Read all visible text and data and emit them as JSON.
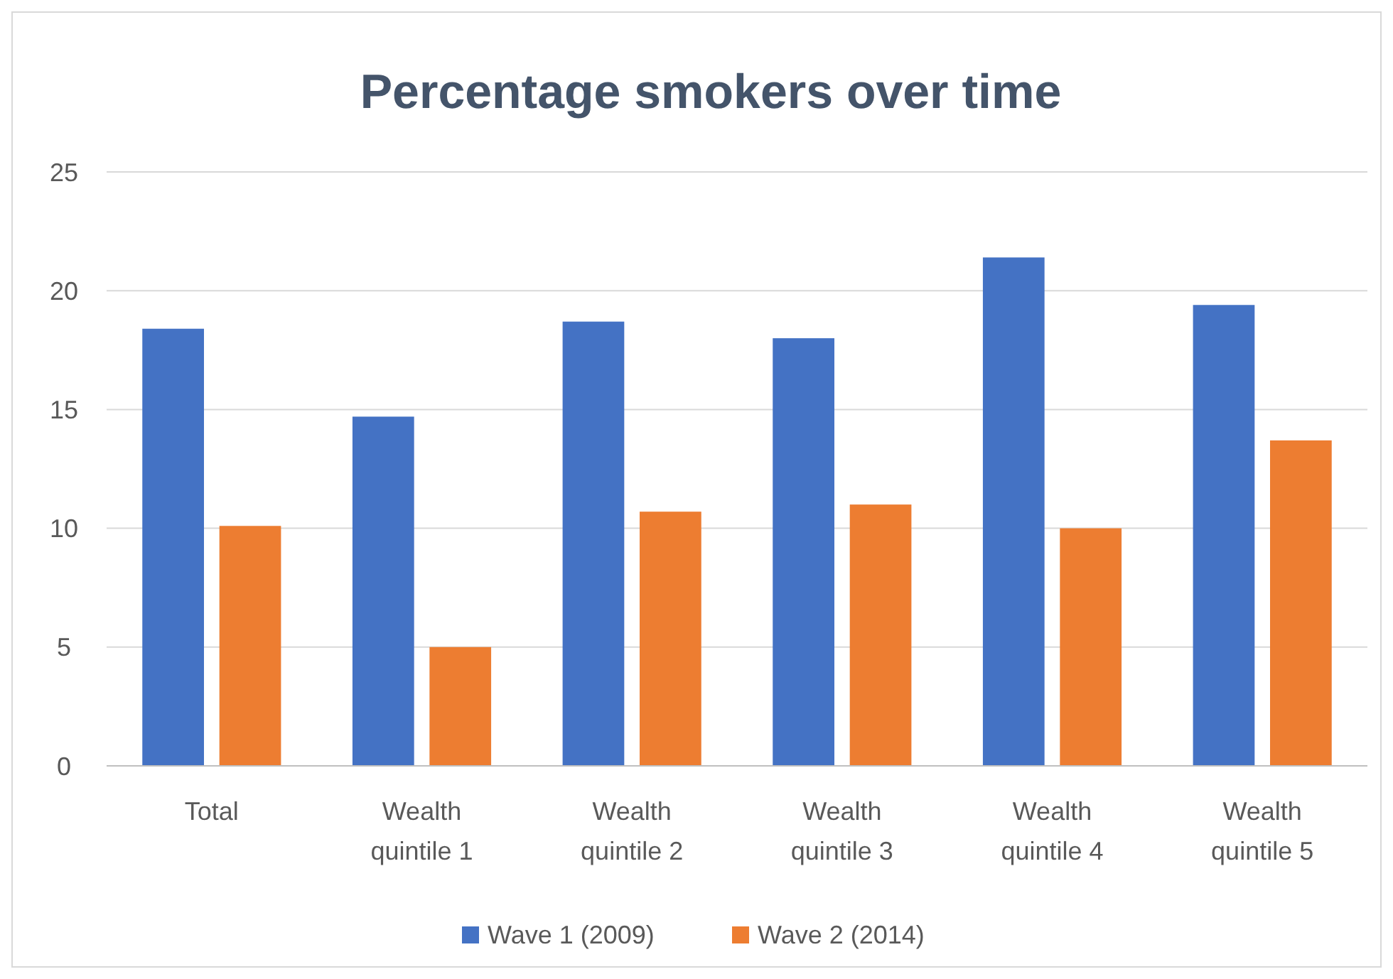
{
  "chart_data": {
    "type": "bar",
    "title": "Percentage smokers over time",
    "categories": [
      "Total",
      "Wealth quintile 1",
      "Wealth quintile 2",
      "Wealth quintile 3",
      "Wealth quintile 4",
      "Wealth quintile 5"
    ],
    "series": [
      {
        "name": "Wave 1 (2009)",
        "color": "#4472c4",
        "values": [
          18.4,
          14.7,
          18.7,
          18.0,
          21.4,
          19.4
        ]
      },
      {
        "name": "Wave 2 (2014)",
        "color": "#ed7d31",
        "values": [
          10.1,
          5.0,
          10.7,
          11.0,
          10.0,
          13.7
        ]
      }
    ],
    "ylim": [
      0,
      25
    ],
    "yticks": [
      0,
      5,
      10,
      15,
      20,
      25
    ],
    "grid": "y",
    "legend": "bottom"
  }
}
